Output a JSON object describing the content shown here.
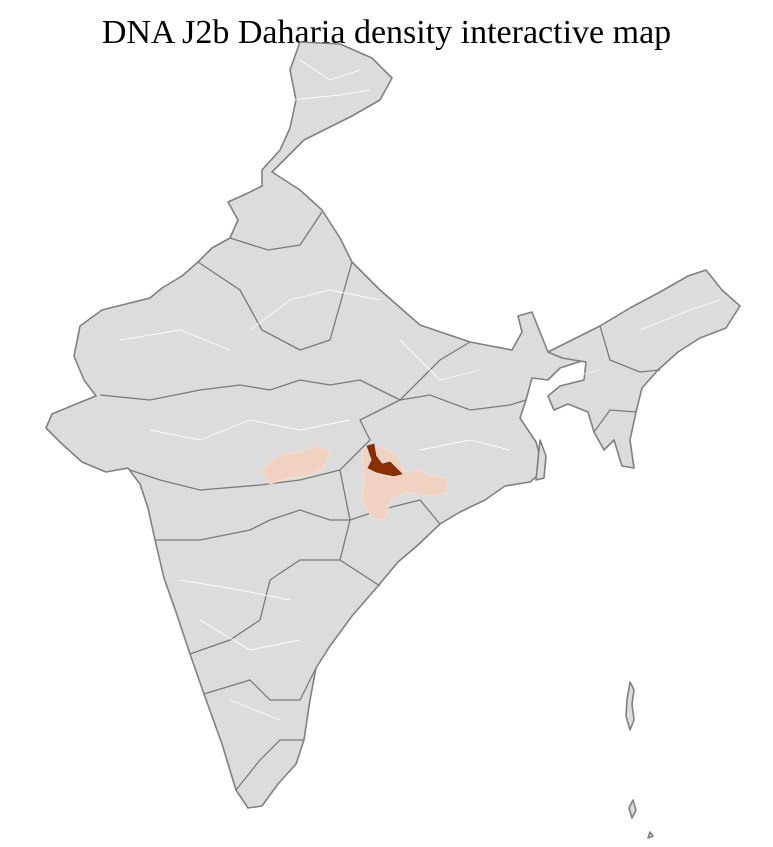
{
  "title": "DNA J2b Daharia density interactive map",
  "map": {
    "region": "India",
    "colors": {
      "base": "#dcdcdc",
      "border": "#808080",
      "district_border": "#ffffff",
      "low_density": "#f0d2c2",
      "high_density": "#8b2e00"
    }
  }
}
